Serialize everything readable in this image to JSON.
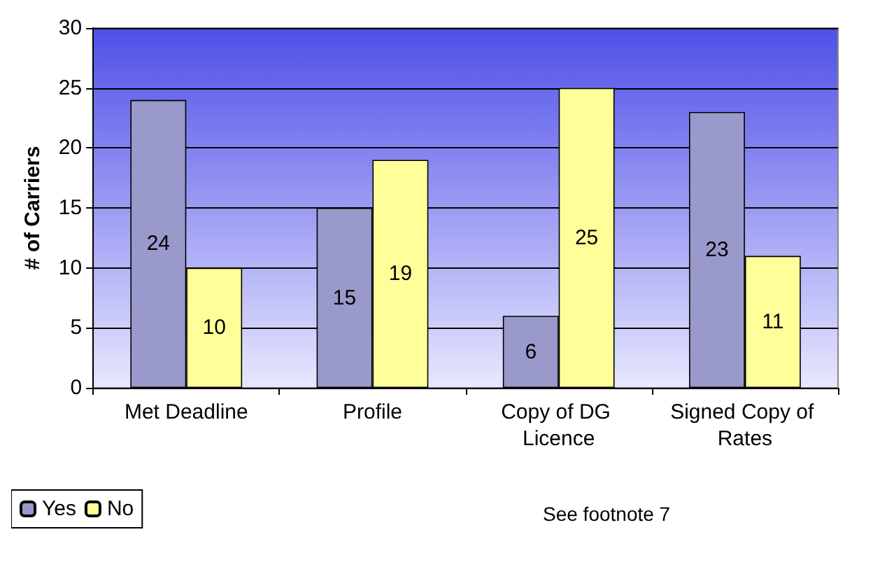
{
  "chart_data": {
    "type": "bar",
    "ylabel": "# of Carriers",
    "categories": [
      "Met Deadline",
      "Profile",
      "Copy of DG Licence",
      "Signed Copy of Rates"
    ],
    "series": [
      {
        "name": "Yes",
        "color": "#9999cc",
        "values": [
          24,
          15,
          6,
          23
        ]
      },
      {
        "name": "No",
        "color": "#ffff99",
        "values": [
          10,
          19,
          25,
          11
        ]
      }
    ],
    "ylim": [
      0,
      30
    ],
    "yticks": [
      0,
      5,
      10,
      15,
      20,
      25,
      30
    ],
    "grid": "y",
    "legend": "bottom left",
    "data_labels": true,
    "annotations": [
      "See footnote 7"
    ]
  }
}
